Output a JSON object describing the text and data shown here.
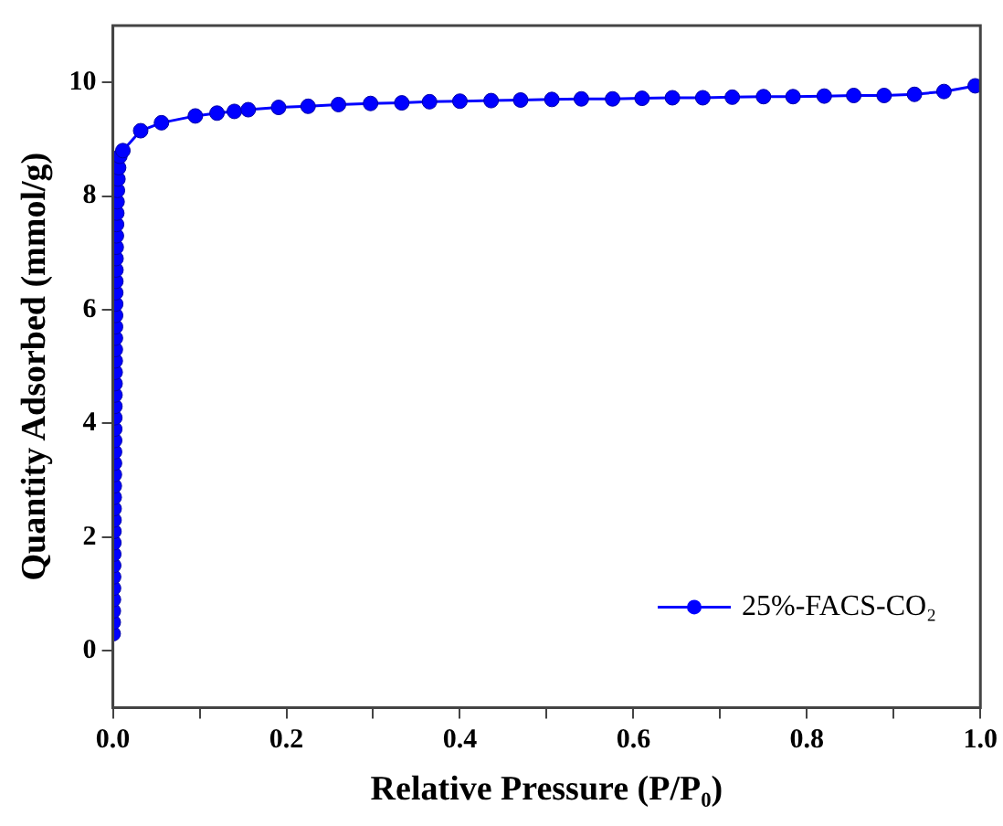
{
  "chart_data": {
    "type": "line",
    "xlabel": "Relative Pressure (P/P₀)",
    "ylabel": "Quantity Adsorbed (mmol/g)",
    "xlim": [
      0,
      1
    ],
    "xticks": [
      {
        "value": 0,
        "label": "0.0"
      },
      {
        "value": 0.1,
        "label": null
      },
      {
        "value": 0.2,
        "label": "0.2"
      },
      {
        "value": 0.3,
        "label": null
      },
      {
        "value": 0.4,
        "label": "0.4"
      },
      {
        "value": 0.5,
        "label": null
      },
      {
        "value": 0.6,
        "label": "0.6"
      },
      {
        "value": 0.7,
        "label": null
      },
      {
        "value": 0.8,
        "label": "0.8"
      },
      {
        "value": 0.9,
        "label": null
      },
      {
        "value": 1,
        "label": "1.0"
      }
    ],
    "ylim": [
      -1,
      11
    ],
    "yticks": [
      0,
      2,
      4,
      6,
      8,
      10
    ],
    "grid": false,
    "legend": "bottom right",
    "marker": "circle",
    "line_style": "solid",
    "series": [
      {
        "name": "25%-FACS-CO₂",
        "color": "#0000ff",
        "x": [
          0.0003,
          0.0004,
          0.0005,
          0.0006,
          0.0007,
          0.0008,
          0.0009,
          0.001,
          0.0011,
          0.0012,
          0.0013,
          0.0014,
          0.0015,
          0.0016,
          0.0017,
          0.0018,
          0.0019,
          0.002,
          0.0021,
          0.0022,
          0.0023,
          0.0024,
          0.0025,
          0.0026,
          0.0027,
          0.0028,
          0.0029,
          0.003,
          0.0031,
          0.0032,
          0.0033,
          0.0034,
          0.0035,
          0.0036,
          0.0038,
          0.004,
          0.0042,
          0.0045,
          0.0048,
          0.0052,
          0.0058,
          0.0066,
          0.008,
          0.0115,
          0.032,
          0.056,
          0.095,
          0.12,
          0.14,
          0.156,
          0.191,
          0.225,
          0.26,
          0.297,
          0.333,
          0.365,
          0.4,
          0.436,
          0.47,
          0.506,
          0.54,
          0.576,
          0.61,
          0.645,
          0.68,
          0.714,
          0.75,
          0.784,
          0.82,
          0.854,
          0.889,
          0.924,
          0.958,
          0.994
        ],
        "values": [
          0.3,
          0.5,
          0.7,
          0.9,
          1.1,
          1.3,
          1.5,
          1.7,
          1.9,
          2.1,
          2.3,
          2.5,
          2.7,
          2.9,
          3.1,
          3.3,
          3.5,
          3.7,
          3.9,
          4.1,
          4.3,
          4.5,
          4.7,
          4.9,
          5.1,
          5.3,
          5.5,
          5.7,
          5.9,
          6.1,
          6.3,
          6.5,
          6.7,
          6.9,
          7.1,
          7.3,
          7.5,
          7.7,
          7.9,
          8.1,
          8.3,
          8.5,
          8.7,
          8.8,
          9.15,
          9.29,
          9.41,
          9.46,
          9.49,
          9.52,
          9.56,
          9.58,
          9.61,
          9.63,
          9.64,
          9.66,
          9.67,
          9.68,
          9.69,
          9.7,
          9.71,
          9.71,
          9.72,
          9.73,
          9.73,
          9.74,
          9.75,
          9.75,
          9.76,
          9.77,
          9.77,
          9.79,
          9.84,
          9.94
        ]
      }
    ]
  }
}
